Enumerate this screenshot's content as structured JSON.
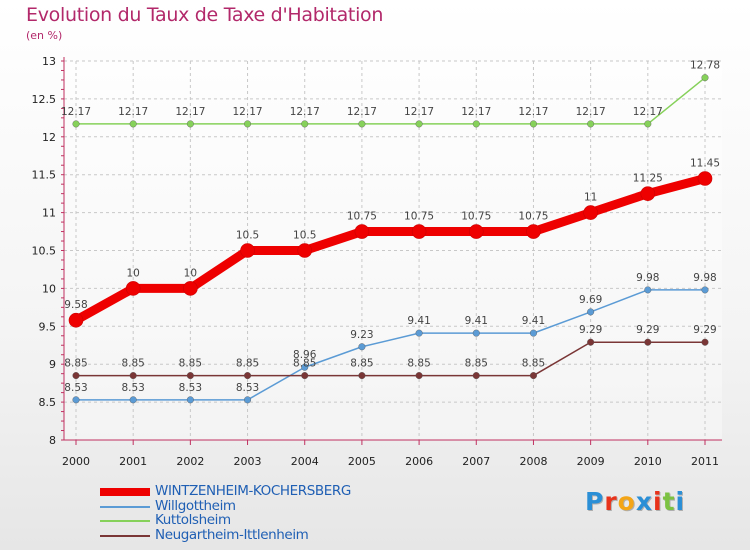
{
  "chart_data": {
    "type": "line",
    "title": "Evolution du Taux de Taxe d'Habitation",
    "subtitle": "(en %)",
    "xlabel": "",
    "ylabel": "",
    "categories": [
      "2000",
      "2001",
      "2002",
      "2003",
      "2004",
      "2005",
      "2006",
      "2007",
      "2008",
      "2009",
      "2010",
      "2011"
    ],
    "ylim": [
      8,
      13
    ],
    "yticks": [
      "8",
      "8.5",
      "9",
      "9.5",
      "10",
      "10.5",
      "11",
      "11.5",
      "12",
      "12.5",
      "13"
    ],
    "grid": true,
    "legend_position": "bottom-left",
    "series": [
      {
        "name": "WINTZENHEIM-KOCHERSBERG",
        "color": "#ee0000",
        "values": [
          9.58,
          10,
          10,
          10.5,
          10.5,
          10.75,
          10.75,
          10.75,
          10.75,
          11,
          11.25,
          11.45
        ],
        "labels": [
          "9.58",
          "10",
          "10",
          "10.5",
          "10.5",
          "10.75",
          "10.75",
          "10.75",
          "10.75",
          "11",
          "11.25",
          "11.45"
        ]
      },
      {
        "name": "Willgottheim",
        "color": "#5b9bd5",
        "values": [
          8.53,
          8.53,
          8.53,
          8.53,
          8.96,
          9.23,
          9.41,
          9.41,
          9.41,
          9.69,
          9.98,
          9.98
        ],
        "labels": [
          "8.53",
          "8.53",
          "8.53",
          "8.53",
          "8.96",
          "9.23",
          "9.41",
          "9.41",
          "9.41",
          "9.69",
          "9.98",
          "9.98"
        ]
      },
      {
        "name": "Kuttolsheim",
        "color": "#86d15a",
        "values": [
          12.17,
          12.17,
          12.17,
          12.17,
          12.17,
          12.17,
          12.17,
          12.17,
          12.17,
          12.17,
          12.17,
          12.78
        ],
        "labels": [
          "12.17",
          "12.17",
          "12.17",
          "12.17",
          "12.17",
          "12.17",
          "12.17",
          "12.17",
          "12.17",
          "12.17",
          "12.17",
          "12.78"
        ]
      },
      {
        "name": "Neugartheim-Ittlenheim",
        "color": "#7a3636",
        "values": [
          8.85,
          8.85,
          8.85,
          8.85,
          8.85,
          8.85,
          8.85,
          8.85,
          8.85,
          9.29,
          9.29,
          9.29
        ],
        "labels": [
          "8.85",
          "8.85",
          "8.85",
          "8.85",
          "8.85",
          "8.85",
          "8.85",
          "8.85",
          "8.85",
          "9.29",
          "9.29",
          "9.29"
        ]
      }
    ]
  },
  "logo": {
    "text": "Proxiti",
    "letters": [
      "P",
      "r",
      "o",
      "x",
      "i",
      "t",
      "i"
    ],
    "colors": [
      "#2b8fd6",
      "#e8331b",
      "#f4a516",
      "#2b8fd6",
      "#e8331b",
      "#7cc242",
      "#2b8fd6"
    ]
  }
}
